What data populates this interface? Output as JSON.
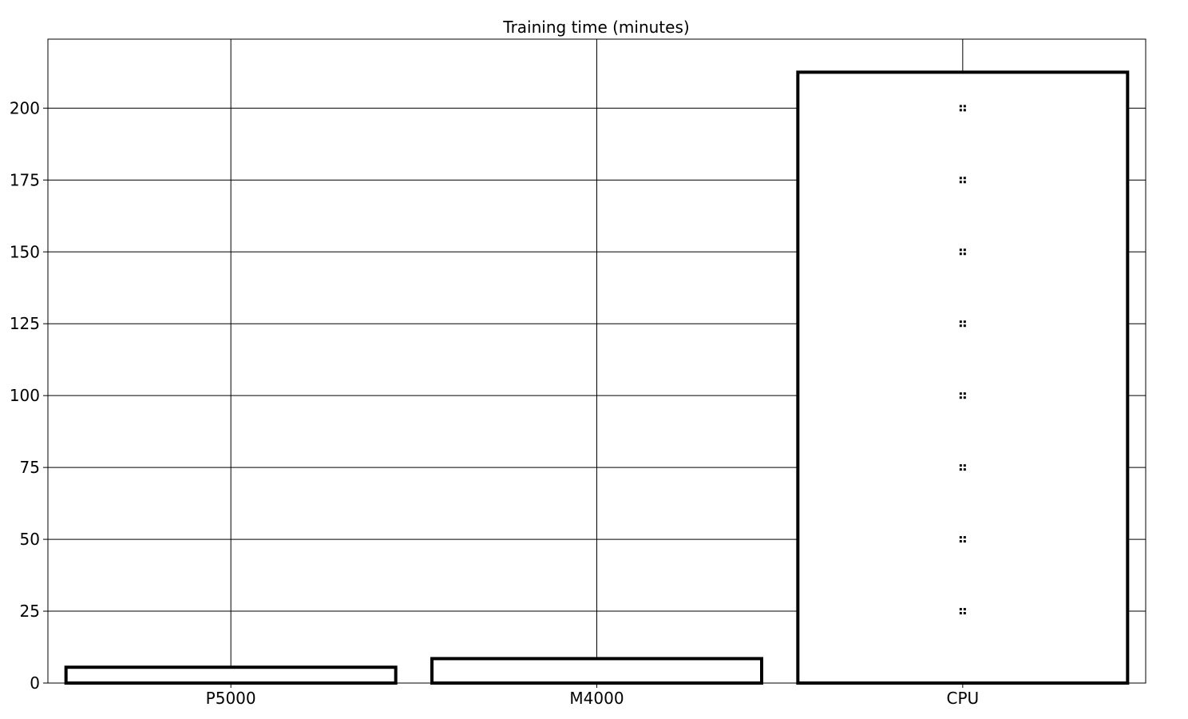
{
  "chart_data": {
    "type": "bar",
    "title": "Training time (minutes)",
    "xlabel": "",
    "ylabel": "",
    "categories": [
      "P5000",
      "M4000",
      "CPU"
    ],
    "values": [
      5.5,
      8.5,
      212.5
    ],
    "ylim": [
      0,
      224
    ],
    "yticks": [
      0,
      25,
      50,
      75,
      100,
      125,
      150,
      175,
      200
    ],
    "ytick_labels": [
      "0",
      "25",
      "50",
      "75",
      "100",
      "125",
      "150",
      "175",
      "200"
    ],
    "grid": true,
    "legend": "none",
    "colors": {
      "bar_fill": "#ffffff",
      "bar_edge": "#000000",
      "grid": "#000000",
      "hatch": "#000000"
    },
    "hatch": "dots"
  }
}
